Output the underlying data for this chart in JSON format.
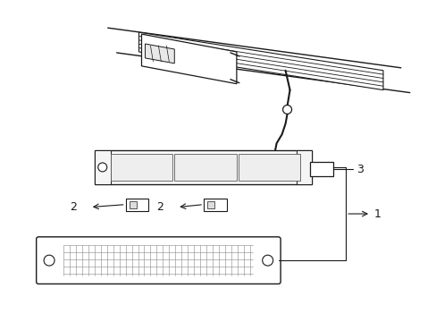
{
  "bg_color": "#ffffff",
  "lc": "#1a1a1a",
  "lw": 0.8,
  "fig_w": 4.89,
  "fig_h": 3.6,
  "dpi": 100
}
